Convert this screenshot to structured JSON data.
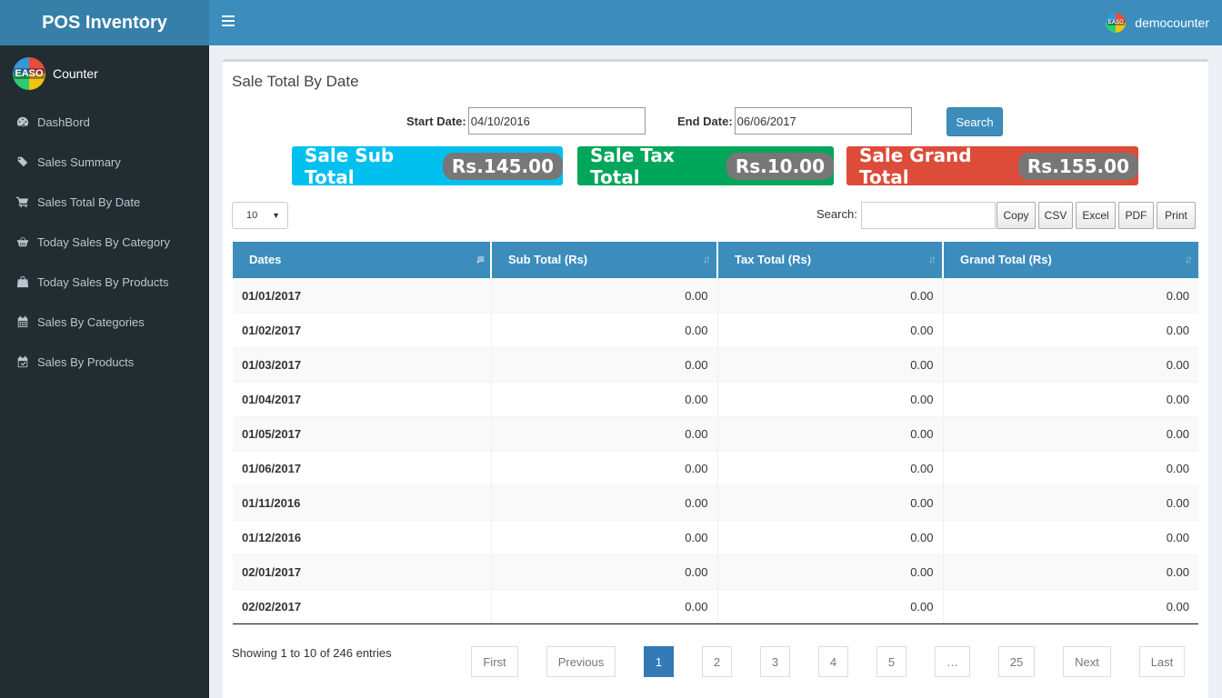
{
  "app": {
    "title": "POS Inventory"
  },
  "topbar": {
    "menu_icon": "hamburger-icon",
    "username": "democounter",
    "avatar_text": "EASO"
  },
  "sidebar": {
    "user_label": "Counter",
    "avatar_text": "EASO",
    "items": [
      {
        "label": "DashBord",
        "icon": "dashboard-icon"
      },
      {
        "label": "Sales Summary",
        "icon": "tags-icon"
      },
      {
        "label": "Sales Total By Date",
        "icon": "cart-icon"
      },
      {
        "label": "Today Sales By Category",
        "icon": "basket-icon"
      },
      {
        "label": "Today Sales By Products",
        "icon": "bag-icon"
      },
      {
        "label": "Sales By Categories",
        "icon": "calendar-icon"
      },
      {
        "label": "Sales By Products",
        "icon": "calendar-check-icon"
      }
    ]
  },
  "main": {
    "title": "Sale Total By Date",
    "filters": {
      "start_label": "Start Date:",
      "start_value": "04/10/2016",
      "end_label": "End Date:",
      "end_value": "06/06/2017",
      "search_button": "Search"
    },
    "stats": {
      "sub_label": "Sale Sub Total",
      "sub_value": "Rs.145.00",
      "tax_label": "Sale Tax Total",
      "tax_value": "Rs.10.00",
      "grand_label": "Sale Grand Total",
      "grand_value": "Rs.155.00",
      "colors": {
        "sub": "#00c0ef",
        "tax": "#00a65a",
        "grand": "#dd4b39"
      }
    },
    "table_controls": {
      "length_value": "10",
      "search_label": "Search:",
      "export_buttons": [
        "Copy",
        "CSV",
        "Excel",
        "PDF",
        "Print"
      ]
    },
    "table": {
      "headers": [
        "Dates",
        "Sub Total (Rs)",
        "Tax Total (Rs)",
        "Grand Total (Rs)"
      ],
      "rows": [
        [
          "01/01/2017",
          "0.00",
          "0.00",
          "0.00"
        ],
        [
          "01/02/2017",
          "0.00",
          "0.00",
          "0.00"
        ],
        [
          "01/03/2017",
          "0.00",
          "0.00",
          "0.00"
        ],
        [
          "01/04/2017",
          "0.00",
          "0.00",
          "0.00"
        ],
        [
          "01/05/2017",
          "0.00",
          "0.00",
          "0.00"
        ],
        [
          "01/06/2017",
          "0.00",
          "0.00",
          "0.00"
        ],
        [
          "01/11/2016",
          "0.00",
          "0.00",
          "0.00"
        ],
        [
          "01/12/2016",
          "0.00",
          "0.00",
          "0.00"
        ],
        [
          "02/01/2017",
          "0.00",
          "0.00",
          "0.00"
        ],
        [
          "02/02/2017",
          "0.00",
          "0.00",
          "0.00"
        ]
      ]
    },
    "footer": {
      "info": "Showing 1 to 10 of 246 entries",
      "pagination": {
        "first": "First",
        "previous": "Previous",
        "pages": [
          "1",
          "2",
          "3",
          "4",
          "5",
          "…",
          "25"
        ],
        "active_page": "1",
        "next": "Next",
        "last": "Last"
      }
    }
  }
}
